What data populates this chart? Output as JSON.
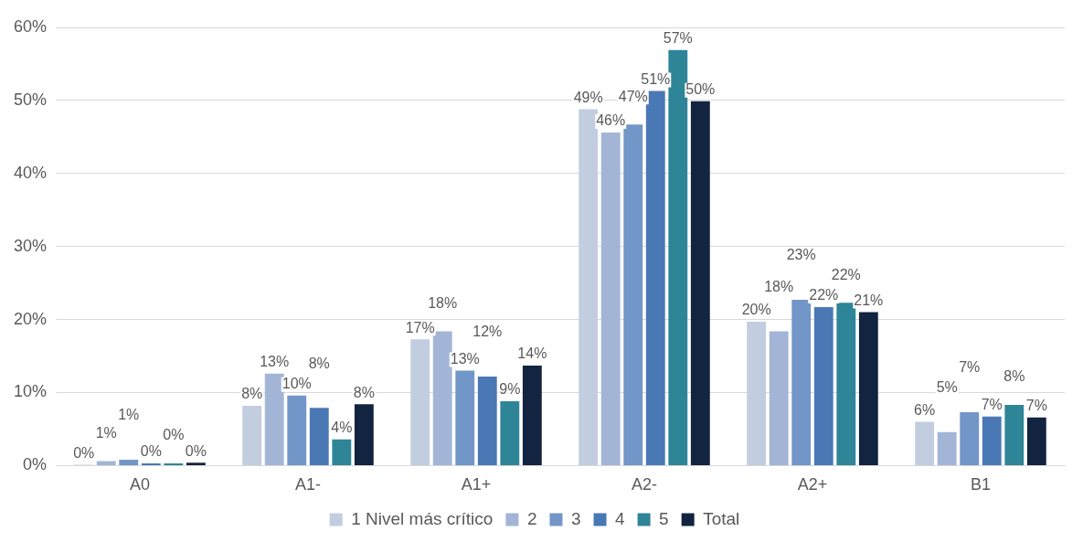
{
  "chart_data": {
    "type": "bar",
    "categories": [
      "A0",
      "A1-",
      "A1+",
      "A2-",
      "A2+",
      "B1"
    ],
    "series": [
      {
        "name": "1 Nivel más crítico",
        "color": "#c3cde0",
        "values": [
          0.1,
          8.2,
          17.3,
          48.8,
          19.7,
          6.0
        ],
        "value_labels": [
          "0%",
          "8%",
          "17%",
          "49%",
          "20%",
          "6%"
        ]
      },
      {
        "name": "2",
        "color": "#a3b5d6",
        "values": [
          0.6,
          12.6,
          18.4,
          45.6,
          18.4,
          4.6
        ],
        "value_labels": [
          "1%",
          "13%",
          "18%",
          "46%",
          "18%",
          "5%"
        ]
      },
      {
        "name": "3",
        "color": "#7396c8",
        "values": [
          0.8,
          9.6,
          13.0,
          46.7,
          22.7,
          7.3
        ],
        "value_labels": [
          "1%",
          "10%",
          "13%",
          "47%",
          "23%",
          "7%"
        ]
      },
      {
        "name": "4",
        "color": "#4a78b5",
        "values": [
          0.3,
          7.9,
          12.2,
          51.3,
          21.7,
          6.7
        ],
        "value_labels": [
          "0%",
          "8%",
          "12%",
          "51%",
          "22%",
          "7%"
        ]
      },
      {
        "name": "5",
        "color": "#2e8597",
        "values": [
          0.3,
          3.6,
          8.8,
          56.9,
          22.3,
          8.3
        ],
        "value_labels": [
          "0%",
          "4%",
          "9%",
          "57%",
          "22%",
          "8%"
        ]
      },
      {
        "name": "Total",
        "color": "#12243f",
        "values": [
          0.4,
          8.4,
          13.7,
          49.9,
          21.0,
          6.6
        ],
        "value_labels": [
          "0%",
          "8%",
          "14%",
          "50%",
          "21%",
          "7%"
        ]
      }
    ],
    "ylim": [
      0,
      60
    ],
    "yticks": [
      {
        "value": 0,
        "label": "0%"
      },
      {
        "value": 10,
        "label": "10%"
      },
      {
        "value": 20,
        "label": "20%"
      },
      {
        "value": 30,
        "label": "30%"
      },
      {
        "value": 40,
        "label": "40%"
      },
      {
        "value": 50,
        "label": "50%"
      },
      {
        "value": 60,
        "label": "60%"
      }
    ],
    "grid": "y",
    "legend": "bottom"
  }
}
